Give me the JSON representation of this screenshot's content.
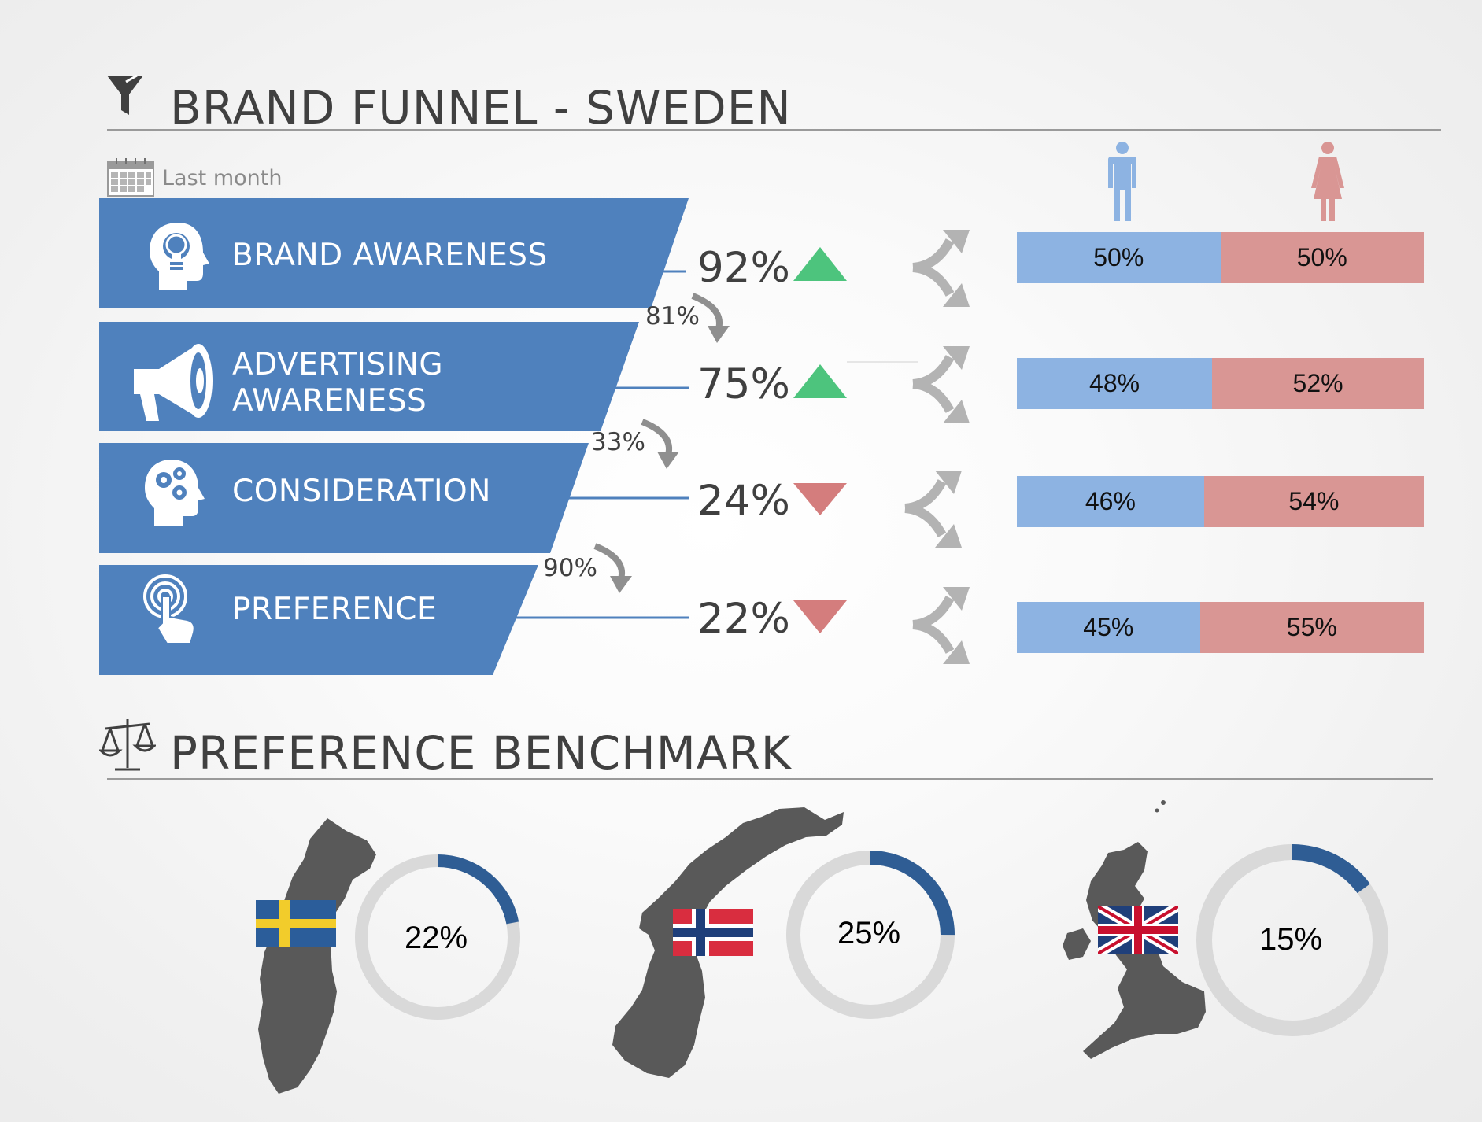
{
  "header": {
    "title": "BRAND FUNNEL - SWEDEN",
    "period": "Last month"
  },
  "funnel": [
    {
      "label": "BRAND AWARENESS",
      "value": "92%",
      "trend": "up"
    },
    {
      "label": "ADVERTISING\nAWARENESS",
      "value": "75%",
      "trend": "up"
    },
    {
      "label": "CONSIDERATION",
      "value": "24%",
      "trend": "down"
    },
    {
      "label": "PREFERENCE",
      "value": "22%",
      "trend": "down"
    }
  ],
  "conversions": [
    "81%",
    "33%",
    "90%"
  ],
  "gender_split": [
    {
      "male": "50%",
      "female": "50%",
      "male_value": 50
    },
    {
      "male": "48%",
      "female": "52%",
      "male_value": 48
    },
    {
      "male": "46%",
      "female": "54%",
      "male_value": 46
    },
    {
      "male": "45%",
      "female": "55%",
      "male_value": 45
    }
  ],
  "benchmark": {
    "title": "PREFERENCE BENCHMARK",
    "countries": [
      {
        "label": "22%",
        "value": 22,
        "flag": "sweden-flag"
      },
      {
        "label": "25%",
        "value": 25,
        "flag": "norway-flag"
      },
      {
        "label": "15%",
        "value": 15,
        "flag": "uk-flag"
      }
    ]
  },
  "colors": {
    "funnel_band": "#4f81bd",
    "male": "#8db3e2",
    "female": "#d99694",
    "up": "#4dc47d",
    "down": "#d47d7d",
    "donut_fill": "#2f5d94",
    "donut_track": "#d9d9d9",
    "map": "#595959"
  },
  "chart_data": [
    {
      "type": "bar",
      "title": "BRAND FUNNEL - SWEDEN",
      "categories": [
        "BRAND AWARENESS",
        "ADVERTISING AWARENESS",
        "CONSIDERATION",
        "PREFERENCE"
      ],
      "values": [
        92,
        75,
        24,
        22
      ],
      "trend": [
        "up",
        "up",
        "down",
        "down"
      ],
      "conversion_rates": [
        81,
        33,
        90
      ]
    },
    {
      "type": "bar",
      "categories": [
        "BRAND AWARENESS",
        "ADVERTISING AWARENESS",
        "CONSIDERATION",
        "PREFERENCE"
      ],
      "stacked": true,
      "series": [
        {
          "values": [
            50,
            48,
            46,
            45
          ]
        },
        {
          "values": [
            50,
            52,
            54,
            55
          ]
        }
      ]
    },
    {
      "type": "pie",
      "title": "PREFERENCE BENCHMARK",
      "donuts": [
        22,
        25,
        15
      ]
    }
  ]
}
